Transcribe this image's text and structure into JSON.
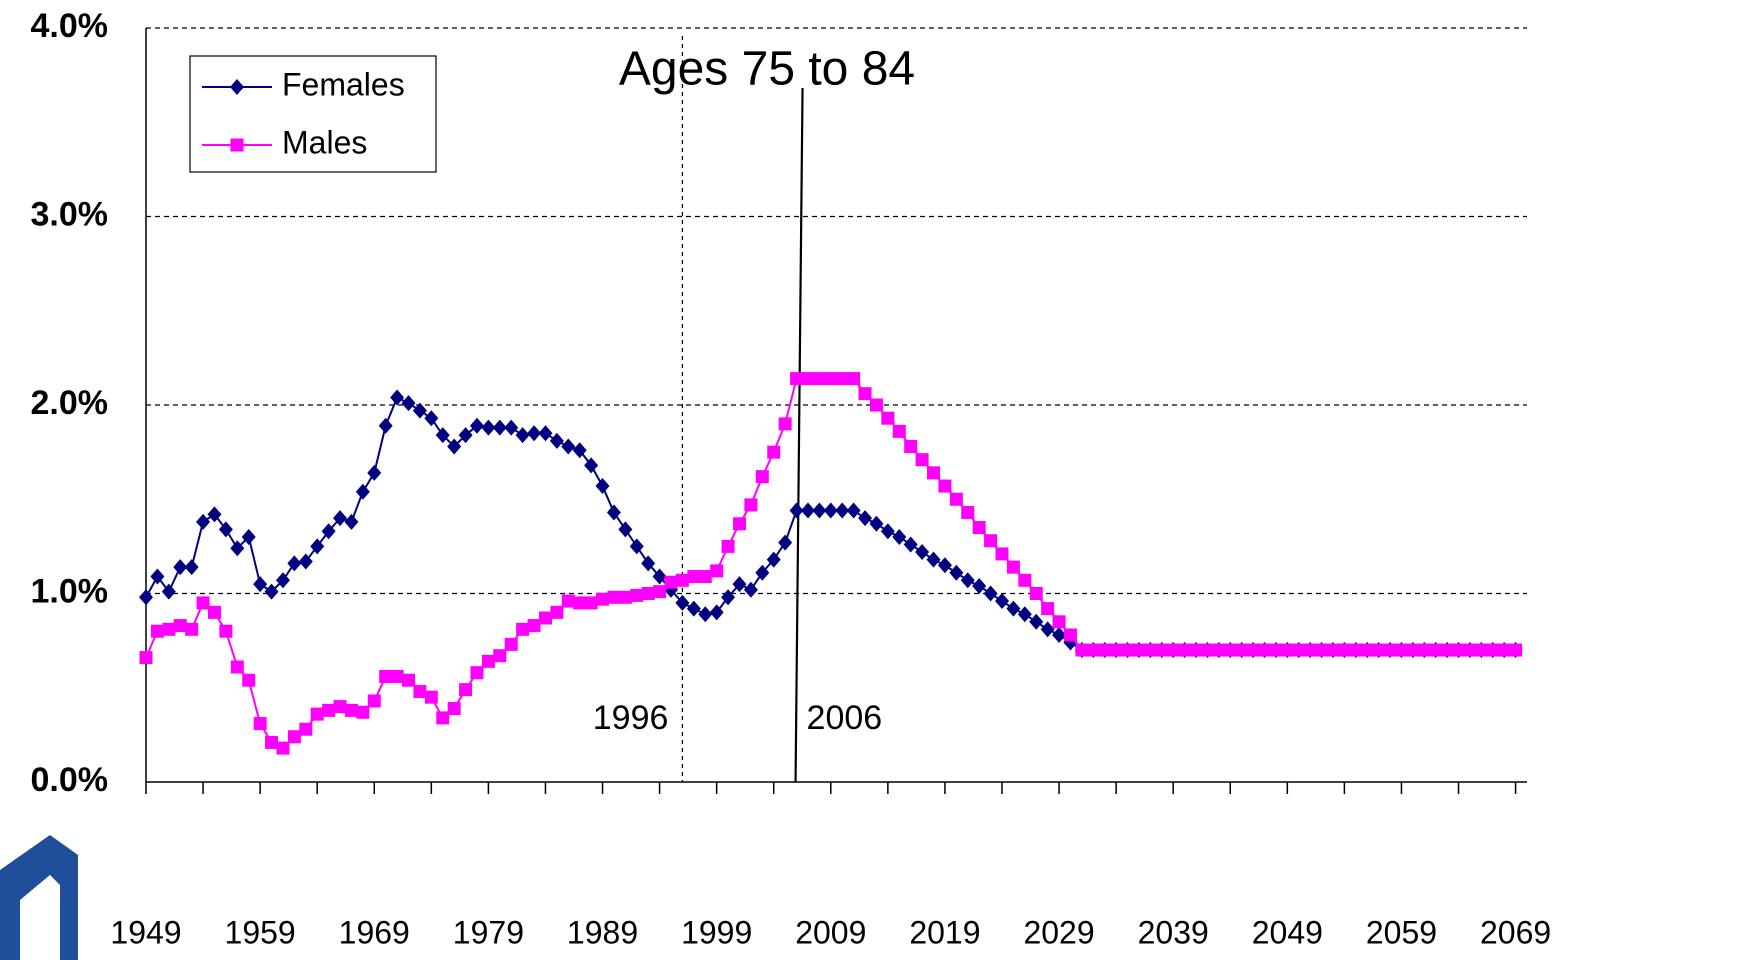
{
  "chart_data": {
    "type": "line",
    "x": [
      1949,
      1950,
      1951,
      1952,
      1953,
      1954,
      1955,
      1956,
      1957,
      1958,
      1959,
      1960,
      1961,
      1962,
      1963,
      1964,
      1965,
      1966,
      1967,
      1968,
      1969,
      1970,
      1971,
      1972,
      1973,
      1974,
      1975,
      1976,
      1977,
      1978,
      1979,
      1980,
      1981,
      1982,
      1983,
      1984,
      1985,
      1986,
      1987,
      1988,
      1989,
      1990,
      1991,
      1992,
      1993,
      1994,
      1995,
      1996,
      1997,
      1998,
      1999,
      2000,
      2001,
      2002,
      2003,
      2004,
      2005,
      2006,
      2007,
      2008,
      2009,
      2010,
      2011,
      2012,
      2013,
      2014,
      2015,
      2016,
      2017,
      2018,
      2019,
      2020,
      2021,
      2022,
      2023,
      2024,
      2025,
      2026,
      2027,
      2028,
      2029,
      2030,
      2031,
      2032,
      2033,
      2034,
      2035,
      2036,
      2037,
      2038,
      2039,
      2040,
      2041,
      2042,
      2043,
      2044,
      2045,
      2046,
      2047,
      2048,
      2049,
      2050,
      2051,
      2052,
      2053,
      2054,
      2055,
      2056,
      2057,
      2058,
      2059,
      2060,
      2061,
      2062,
      2063,
      2064,
      2065,
      2066,
      2067,
      2068,
      2069
    ],
    "series": [
      {
        "name": "Females",
        "color": "#000080",
        "marker": "diamond",
        "values": [
          0.98,
          1.09,
          1.01,
          1.14,
          1.14,
          1.38,
          1.42,
          1.34,
          1.24,
          1.3,
          1.05,
          1.01,
          1.07,
          1.16,
          1.17,
          1.25,
          1.33,
          1.4,
          1.38,
          1.54,
          1.64,
          1.89,
          2.04,
          2.01,
          1.97,
          1.93,
          1.84,
          1.78,
          1.84,
          1.89,
          1.88,
          1.88,
          1.88,
          1.84,
          1.85,
          1.85,
          1.81,
          1.78,
          1.76,
          1.68,
          1.57,
          1.43,
          1.34,
          1.25,
          1.16,
          1.09,
          1.02,
          0.95,
          0.92,
          0.89,
          0.9,
          0.98,
          1.05,
          1.02,
          1.11,
          1.18,
          1.27,
          1.44,
          1.44,
          1.44,
          1.44,
          1.44,
          1.44,
          1.4,
          1.37,
          1.33,
          1.3,
          1.26,
          1.22,
          1.18,
          1.15,
          1.11,
          1.07,
          1.04,
          1.0,
          0.96,
          0.92,
          0.89,
          0.85,
          0.81,
          0.78,
          0.74,
          0.7,
          0.7,
          0.7,
          0.7,
          0.7,
          0.7,
          0.7,
          0.7,
          0.7,
          0.7,
          0.7,
          0.7,
          0.7,
          0.7,
          0.7,
          0.7,
          0.7,
          0.7,
          0.7,
          0.7,
          0.7,
          0.7,
          0.7,
          0.7,
          0.7,
          0.7,
          0.7,
          0.7,
          0.7,
          0.7,
          0.7,
          0.7,
          0.7,
          0.7,
          0.7,
          0.7,
          0.7,
          0.7,
          0.7
        ]
      },
      {
        "name": "Males",
        "color": "#ff00ff",
        "marker": "square",
        "values": [
          0.66,
          0.8,
          0.81,
          0.83,
          0.81,
          0.95,
          0.9,
          0.8,
          0.61,
          0.54,
          0.31,
          0.21,
          0.18,
          0.24,
          0.28,
          0.36,
          0.38,
          0.4,
          0.38,
          0.37,
          0.43,
          0.56,
          0.56,
          0.54,
          0.48,
          0.45,
          0.34,
          0.39,
          0.49,
          0.58,
          0.64,
          0.67,
          0.73,
          0.81,
          0.83,
          0.87,
          0.9,
          0.96,
          0.95,
          0.95,
          0.97,
          0.98,
          0.98,
          0.99,
          1.0,
          1.01,
          1.06,
          1.07,
          1.09,
          1.09,
          1.12,
          1.25,
          1.37,
          1.47,
          1.62,
          1.75,
          1.9,
          2.14,
          2.14,
          2.14,
          2.14,
          2.14,
          2.14,
          2.06,
          2.0,
          1.93,
          1.86,
          1.78,
          1.71,
          1.64,
          1.57,
          1.5,
          1.43,
          1.35,
          1.28,
          1.21,
          1.14,
          1.07,
          1.0,
          0.92,
          0.85,
          0.78,
          0.7,
          0.7,
          0.7,
          0.7,
          0.7,
          0.7,
          0.7,
          0.7,
          0.7,
          0.7,
          0.7,
          0.7,
          0.7,
          0.7,
          0.7,
          0.7,
          0.7,
          0.7,
          0.7,
          0.7,
          0.7,
          0.7,
          0.7,
          0.7,
          0.7,
          0.7,
          0.7,
          0.7,
          0.7,
          0.7,
          0.7,
          0.7,
          0.7,
          0.7,
          0.7,
          0.7,
          0.7,
          0.7,
          0.7
        ]
      }
    ],
    "xlim": [
      1949,
      2070
    ],
    "xticks": [
      1949,
      1959,
      1969,
      1979,
      1989,
      1999,
      2009,
      2019,
      2029,
      2039,
      2049,
      2059,
      2069
    ],
    "xminorticks": [
      1954,
      1964,
      1974,
      1984,
      1994,
      2004,
      2014,
      2024,
      2034,
      2044,
      2054,
      2064
    ],
    "ylim": [
      0,
      4
    ],
    "yticks": [
      {
        "value": 0,
        "label": "0.0%"
      },
      {
        "value": 1,
        "label": "1.0%"
      },
      {
        "value": 2,
        "label": "2.0%"
      },
      {
        "value": 3,
        "label": "3.0%"
      },
      {
        "value": 4,
        "label": "4.0%"
      }
    ],
    "grid": true,
    "legend": "top-left",
    "annotation": "Ages 75 to 84",
    "vlines": [
      {
        "x": 1996,
        "label": "1996",
        "style": "dashed"
      },
      {
        "x": 2006,
        "label": "2006",
        "style": "solid"
      }
    ]
  }
}
